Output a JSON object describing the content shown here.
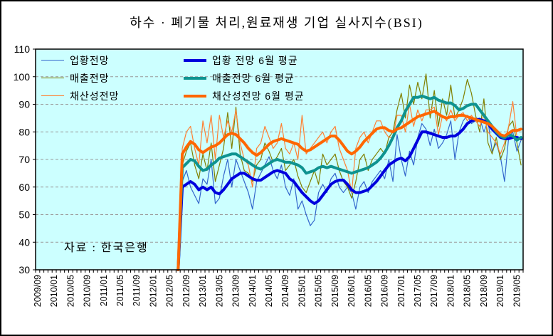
{
  "title": "하수 · 폐기물 처리,원료재생 기업 실사지수(BSI)",
  "source_note": "자료 : 한국은행",
  "colors": {
    "plot_background": "#CCFFFF",
    "gridline": "#999999",
    "axis": "#000000",
    "thin_blue": "#3366CC",
    "thin_olive": "#808000",
    "thin_orange": "#FF8033",
    "thick_blue": "#0000DD",
    "thick_teal": "#0E9390",
    "thick_orange": "#FF6600"
  },
  "legend": {
    "items": [
      {
        "label": "업황전망",
        "series": 0
      },
      {
        "label": "매출전망",
        "series": 1
      },
      {
        "label": "채산성전망",
        "series": 2
      },
      {
        "label": "업황 전망 6월 평균",
        "series": 3
      },
      {
        "label": "매출전망 6월 평균",
        "series": 4
      },
      {
        "label": "채산성전망 6월 평균",
        "series": 5
      }
    ]
  },
  "chart_data": {
    "type": "line",
    "title": "하수 · 폐기물 처리,원료재생 기업 실사지수(BSI)",
    "xlabel": "",
    "ylabel": "",
    "grid": "horizontal-dashed",
    "legend_position": "inside-top-left",
    "y_axis": {
      "min": 30,
      "max": 110,
      "step": 10,
      "ticks": [
        30,
        40,
        50,
        60,
        70,
        80,
        90,
        100,
        110
      ]
    },
    "x_axis": {
      "total_months": 118,
      "start": "2009/09",
      "end": "2019/06",
      "label_every": 4,
      "tick_labels": [
        "2009/09",
        "2010/01",
        "2010/05",
        "2010/09",
        "2011/01",
        "2011/05",
        "2011/09",
        "2012/01",
        "2012/05",
        "2012/09",
        "2013/01",
        "2013/05",
        "2013/09",
        "2014/01",
        "2014/05",
        "2014/09",
        "2015/01",
        "2015/05",
        "2015/09",
        "2016/01",
        "2016/05",
        "2016/09",
        "2017/01",
        "2017/05",
        "2017/09",
        "2018/01",
        "2018/05",
        "2018/09",
        "2019/01",
        "2019/05"
      ]
    },
    "series_start": "2012/07",
    "series_start_index": 34,
    "series": [
      {
        "name": "업황전망",
        "color": "#3366CC",
        "width": 1.2,
        "values": [
          30,
          62,
          66,
          60,
          57,
          54,
          63,
          61,
          70,
          54,
          56,
          64,
          70,
          60,
          70,
          66,
          62,
          58,
          52,
          62,
          65,
          68,
          71,
          66,
          63,
          68,
          60,
          57,
          63,
          52,
          55,
          50,
          46,
          48,
          58,
          61,
          58,
          63,
          65,
          60,
          58,
          60,
          58,
          52,
          60,
          62,
          58,
          62,
          64,
          66,
          63,
          70,
          62,
          79,
          70,
          64,
          73,
          68,
          78,
          83,
          81,
          75,
          81,
          74,
          76,
          79,
          84,
          70,
          80,
          84,
          86,
          83,
          84,
          85,
          80,
          84,
          73,
          76,
          71,
          62,
          78,
          80,
          73,
          77
        ]
      },
      {
        "name": "매출전망",
        "color": "#808000",
        "width": 1.2,
        "values": [
          30,
          68,
          73,
          76,
          68,
          63,
          72,
          66,
          76,
          62,
          68,
          74,
          87,
          74,
          89,
          72,
          66,
          65,
          62,
          68,
          70,
          76,
          73,
          69,
          71,
          74,
          66,
          68,
          70,
          64,
          60,
          58,
          62,
          66,
          61,
          72,
          68,
          70,
          72,
          66,
          62,
          60,
          56,
          62,
          70,
          72,
          66,
          70,
          72,
          74,
          72,
          78,
          80,
          88,
          94,
          85,
          97,
          90,
          98,
          92,
          101,
          85,
          95,
          82,
          92,
          86,
          97,
          85,
          88,
          92,
          99,
          94,
          86,
          80,
          92,
          76,
          72,
          78,
          70,
          74,
          82,
          84,
          76,
          68
        ]
      },
      {
        "name": "채산성전망",
        "color": "#FF8033",
        "width": 1.2,
        "values": [
          30,
          74,
          80,
          82,
          74,
          68,
          84,
          76,
          86,
          70,
          86,
          78,
          84,
          80,
          88,
          76,
          70,
          68,
          60,
          74,
          76,
          82,
          78,
          74,
          76,
          83,
          74,
          72,
          76,
          70,
          86,
          72,
          74,
          76,
          78,
          80,
          76,
          80,
          82,
          74,
          70,
          66,
          58,
          74,
          78,
          80,
          76,
          80,
          84,
          84,
          80,
          78,
          78,
          86,
          86,
          80,
          90,
          82,
          88,
          84,
          88,
          88,
          89,
          79,
          86,
          84,
          88,
          84,
          86,
          87,
          84,
          86,
          84,
          82,
          86,
          80,
          78,
          76,
          72,
          76,
          82,
          91,
          78,
          77
        ]
      },
      {
        "name": "업황 전망 6월 평균",
        "color": "#0000DD",
        "width": 4,
        "values": [
          30,
          60,
          61,
          62,
          61,
          59,
          60,
          59,
          60,
          58,
          57.5,
          59,
          61,
          63,
          64,
          65,
          65,
          64,
          63,
          62.5,
          62.5,
          63.5,
          64.5,
          65.5,
          66,
          65.5,
          65,
          63,
          62,
          60,
          58,
          56.5,
          55,
          54,
          55,
          57,
          59,
          61,
          62,
          62.5,
          62.5,
          61,
          59,
          58,
          58,
          58.5,
          59,
          60.5,
          62,
          64,
          66,
          68,
          69,
          70,
          70.5,
          69.5,
          71,
          74,
          77,
          80,
          80,
          79.5,
          79,
          78.5,
          78,
          78,
          78.5,
          78.5,
          79.5,
          81,
          83,
          84,
          84.5,
          84.5,
          84,
          83,
          81,
          79.5,
          78,
          77.5,
          77.5,
          78,
          78,
          77.5
        ]
      },
      {
        "name": "매출전망 6월 평균",
        "color": "#0E9390",
        "width": 4,
        "values": [
          30,
          67,
          68.5,
          70,
          69.5,
          67.5,
          66,
          66.5,
          68,
          69,
          70.5,
          71,
          71.5,
          72,
          72,
          71,
          70,
          69,
          68,
          67,
          66.5,
          67.5,
          68.5,
          69.5,
          70,
          69.5,
          69,
          69,
          68.5,
          68,
          67,
          65,
          65.5,
          66,
          67,
          67.5,
          67,
          67.5,
          67,
          66.5,
          66,
          65.5,
          65,
          65.5,
          66,
          66.5,
          67,
          68,
          69,
          70.5,
          72.5,
          75,
          78,
          81.5,
          84,
          87.5,
          90,
          92.5,
          92.5,
          93,
          92.5,
          92,
          92.5,
          91.5,
          91,
          90.5,
          90.5,
          89.5,
          88,
          88.5,
          89.5,
          90,
          90,
          88,
          86,
          84,
          82,
          80,
          78.5,
          77.8,
          79,
          78.5,
          77,
          78
        ]
      },
      {
        "name": "채산성전망 6월 평균",
        "color": "#FF6600",
        "width": 4,
        "values": [
          30,
          72,
          74.5,
          76.5,
          75.5,
          73.5,
          72.5,
          73.5,
          74.5,
          75,
          76,
          77.5,
          79,
          79.5,
          79,
          77.5,
          76,
          74,
          72.5,
          71.5,
          72.5,
          74,
          75.5,
          76.5,
          77,
          77.5,
          77,
          76.5,
          76,
          75.5,
          74,
          73,
          73.5,
          74.5,
          75.5,
          76.5,
          77.5,
          78.5,
          78.5,
          77,
          75,
          73,
          72,
          73,
          74.5,
          76.5,
          78,
          79.5,
          81,
          81.5,
          81.5,
          80.5,
          80,
          81,
          81.5,
          82.5,
          83.5,
          84.5,
          85.5,
          86,
          86.5,
          87,
          87.5,
          86.5,
          85.5,
          85,
          85.5,
          85.5,
          86,
          86,
          85.5,
          85,
          84.5,
          84,
          83.5,
          83,
          82,
          80.5,
          79,
          78.5,
          79.5,
          80.5,
          80.5,
          81
        ]
      }
    ]
  }
}
